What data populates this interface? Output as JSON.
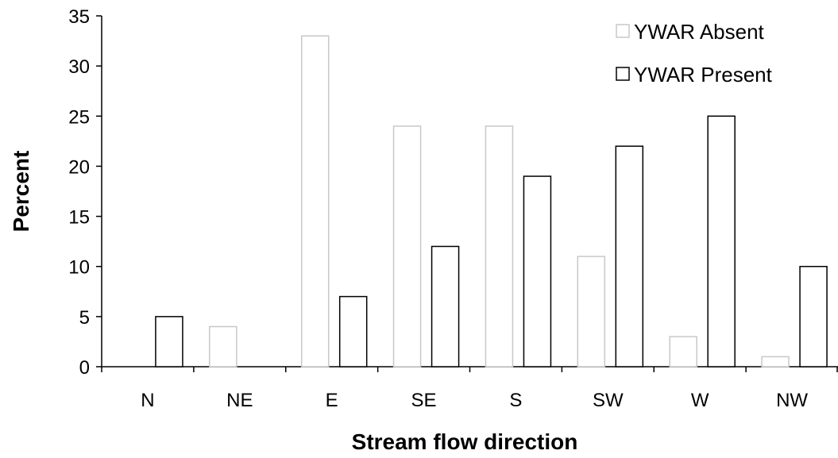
{
  "chart_data": {
    "type": "bar",
    "title": "",
    "xlabel": "Stream flow direction",
    "ylabel": "Percent",
    "categories": [
      "N",
      "NE",
      "E",
      "SE",
      "S",
      "SW",
      "W",
      "NW"
    ],
    "series": [
      {
        "name": "YWAR Absent",
        "values": [
          0,
          4,
          33,
          24,
          24,
          11,
          3,
          1
        ],
        "stroke": "#c8c8c8"
      },
      {
        "name": "YWAR Present",
        "values": [
          5,
          0,
          7,
          12,
          19,
          22,
          25,
          10
        ],
        "stroke": "#000000"
      }
    ],
    "ylim": [
      0,
      35
    ],
    "yticks": [
      0,
      5,
      10,
      15,
      20,
      25,
      30,
      35
    ],
    "grid": false,
    "legend": "top-right"
  }
}
